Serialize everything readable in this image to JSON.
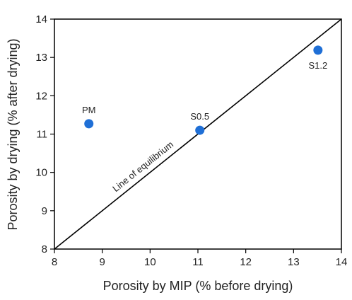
{
  "chart_data": {
    "type": "scatter",
    "xlabel": "Porosity by MIP (% before drying)",
    "ylabel": "Porosity by drying (% after drying)",
    "series": [
      {
        "color": "#1f6fd6",
        "x": [
          8.72,
          11.04,
          13.51
        ],
        "values": [
          11.27,
          11.1,
          13.19
        ],
        "labels": [
          "PM",
          "S0.5",
          "S1.2"
        ]
      }
    ],
    "reference_line": {
      "label": "Line of equilibrium",
      "x": [
        8,
        14
      ],
      "values": [
        8,
        14
      ]
    },
    "xlim": [
      8,
      14
    ],
    "ylim": [
      8,
      14
    ],
    "xticks": [
      8,
      9,
      10,
      11,
      12,
      13,
      14
    ],
    "yticks": [
      8,
      9,
      10,
      11,
      12,
      13,
      14
    ]
  }
}
